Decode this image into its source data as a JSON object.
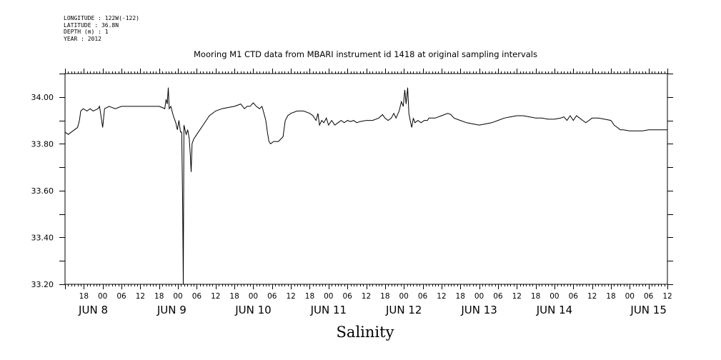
{
  "metadata": {
    "longitude": "LONGITUDE : 122W(-122)",
    "latitude": "LATITUDE : 36.8N",
    "depth": "DEPTH (m) : 1",
    "year": "YEAR : 2012"
  },
  "chart_data": {
    "type": "line",
    "title": "Mooring M1 CTD data from MBARI instrument id 1418 at original sampling intervals",
    "xlabel": "Salinity",
    "ylabel": "",
    "x_unit": "hours since Jun 7 12:00, 2012",
    "xlim": [
      0,
      192
    ],
    "ylim": [
      33.2,
      34.1
    ],
    "y_tick_labels": [
      "34.00",
      "33.80",
      "33.60",
      "33.40",
      "33.20"
    ],
    "y_tick_values": [
      34.0,
      33.8,
      33.6,
      33.4,
      33.2
    ],
    "hour_tick_labels": [
      "18",
      "00",
      "06",
      "12",
      "18",
      "00",
      "06",
      "12",
      "18",
      "00",
      "06",
      "12",
      "18",
      "00",
      "06",
      "12",
      "18",
      "00",
      "06",
      "12",
      "18",
      "00",
      "06",
      "12",
      "18",
      "00",
      "06",
      "12",
      "18",
      "00",
      "06",
      "12"
    ],
    "day_labels": [
      "JUN  8",
      "JUN  9",
      "JUN 10",
      "JUN 11",
      "JUN 12",
      "JUN 13",
      "JUN 14",
      "JUN 15"
    ],
    "series": [
      {
        "values": [
          [
            0,
            33.85
          ],
          [
            1,
            33.84
          ],
          [
            3,
            33.86
          ],
          [
            4,
            33.87
          ],
          [
            4.6,
            33.9
          ],
          [
            5,
            33.94
          ],
          [
            5.8,
            33.95
          ],
          [
            7,
            33.94
          ],
          [
            8,
            33.95
          ],
          [
            9,
            33.94
          ],
          [
            10.5,
            33.95
          ],
          [
            11,
            33.96
          ],
          [
            12,
            33.87
          ],
          [
            12.6,
            33.95
          ],
          [
            14,
            33.96
          ],
          [
            16,
            33.95
          ],
          [
            18,
            33.96
          ],
          [
            22,
            33.96
          ],
          [
            26,
            33.96
          ],
          [
            30,
            33.96
          ],
          [
            31,
            33.955
          ],
          [
            31.8,
            33.95
          ],
          [
            32.2,
            33.99
          ],
          [
            32.6,
            33.97
          ],
          [
            32.9,
            34.04
          ],
          [
            33.2,
            33.95
          ],
          [
            33.7,
            33.96
          ],
          [
            34.5,
            33.92
          ],
          [
            35.3,
            33.89
          ],
          [
            35.8,
            33.86
          ],
          [
            36.3,
            33.9
          ],
          [
            36.8,
            33.85
          ],
          [
            37.2,
            33.85
          ],
          [
            37.5,
            33.54
          ],
          [
            37.7,
            33.2
          ],
          [
            37.9,
            33.88
          ],
          [
            38.6,
            33.84
          ],
          [
            39.1,
            33.86
          ],
          [
            39.6,
            33.82
          ],
          [
            39.9,
            33.76
          ],
          [
            40.2,
            33.68
          ],
          [
            40.5,
            33.8
          ],
          [
            41,
            33.82
          ],
          [
            42,
            33.84
          ],
          [
            44,
            33.88
          ],
          [
            46,
            33.92
          ],
          [
            48,
            33.94
          ],
          [
            50,
            33.95
          ],
          [
            52,
            33.955
          ],
          [
            54,
            33.96
          ],
          [
            56,
            33.97
          ],
          [
            57.2,
            33.95
          ],
          [
            58,
            33.96
          ],
          [
            59,
            33.96
          ],
          [
            60,
            33.975
          ],
          [
            61,
            33.96
          ],
          [
            62,
            33.95
          ],
          [
            62.8,
            33.96
          ],
          [
            63.4,
            33.93
          ],
          [
            64,
            33.9
          ],
          [
            64.5,
            33.85
          ],
          [
            65,
            33.81
          ],
          [
            65.5,
            33.8
          ],
          [
            66.5,
            33.81
          ],
          [
            68,
            33.81
          ],
          [
            69.5,
            33.83
          ],
          [
            70.2,
            33.9
          ],
          [
            71,
            33.92
          ],
          [
            72,
            33.93
          ],
          [
            74,
            33.94
          ],
          [
            76,
            33.94
          ],
          [
            78,
            33.93
          ],
          [
            79,
            33.92
          ],
          [
            80,
            33.9
          ],
          [
            80.6,
            33.93
          ],
          [
            81.1,
            33.88
          ],
          [
            81.8,
            33.9
          ],
          [
            82.5,
            33.89
          ],
          [
            83.3,
            33.91
          ],
          [
            84,
            33.88
          ],
          [
            85,
            33.9
          ],
          [
            86,
            33.88
          ],
          [
            87,
            33.89
          ],
          [
            88,
            33.9
          ],
          [
            89,
            33.89
          ],
          [
            90,
            33.9
          ],
          [
            91,
            33.895
          ],
          [
            92,
            33.9
          ],
          [
            93,
            33.89
          ],
          [
            94,
            33.895
          ],
          [
            96,
            33.9
          ],
          [
            98,
            33.9
          ],
          [
            100,
            33.91
          ],
          [
            101.2,
            33.925
          ],
          [
            102,
            33.91
          ],
          [
            103,
            33.9
          ],
          [
            104,
            33.91
          ],
          [
            104.8,
            33.93
          ],
          [
            105.5,
            33.91
          ],
          [
            106.5,
            33.94
          ],
          [
            107.2,
            33.98
          ],
          [
            107.8,
            33.96
          ],
          [
            108.3,
            34.03
          ],
          [
            108.7,
            33.97
          ],
          [
            109.2,
            34.04
          ],
          [
            109.6,
            33.93
          ],
          [
            110,
            33.9
          ],
          [
            110.5,
            33.87
          ],
          [
            111,
            33.91
          ],
          [
            111.5,
            33.89
          ],
          [
            112.5,
            33.9
          ],
          [
            113.5,
            33.89
          ],
          [
            114.5,
            33.9
          ],
          [
            115.5,
            33.9
          ],
          [
            116,
            33.91
          ],
          [
            117,
            33.91
          ],
          [
            118,
            33.91
          ],
          [
            120,
            33.92
          ],
          [
            122,
            33.93
          ],
          [
            123,
            33.925
          ],
          [
            124,
            33.91
          ],
          [
            126,
            33.9
          ],
          [
            128,
            33.89
          ],
          [
            130,
            33.885
          ],
          [
            132,
            33.88
          ],
          [
            134,
            33.885
          ],
          [
            136,
            33.89
          ],
          [
            138,
            33.9
          ],
          [
            140,
            33.91
          ],
          [
            142,
            33.915
          ],
          [
            144,
            33.92
          ],
          [
            146,
            33.92
          ],
          [
            148,
            33.915
          ],
          [
            150,
            33.91
          ],
          [
            152,
            33.91
          ],
          [
            154,
            33.905
          ],
          [
            156,
            33.905
          ],
          [
            158,
            33.91
          ],
          [
            159,
            33.915
          ],
          [
            160,
            33.9
          ],
          [
            161,
            33.92
          ],
          [
            162,
            33.9
          ],
          [
            163,
            33.92
          ],
          [
            164,
            33.91
          ],
          [
            165,
            33.9
          ],
          [
            166,
            33.89
          ],
          [
            167,
            33.9
          ],
          [
            168,
            33.91
          ],
          [
            170,
            33.91
          ],
          [
            172,
            33.905
          ],
          [
            174,
            33.9
          ],
          [
            175,
            33.88
          ],
          [
            176,
            33.87
          ],
          [
            177,
            33.86
          ],
          [
            178,
            33.86
          ],
          [
            180,
            33.855
          ],
          [
            182,
            33.855
          ],
          [
            184,
            33.855
          ],
          [
            186,
            33.86
          ],
          [
            188,
            33.86
          ],
          [
            190,
            33.86
          ],
          [
            192,
            33.86
          ]
        ]
      }
    ],
    "line_color": "#000000"
  }
}
